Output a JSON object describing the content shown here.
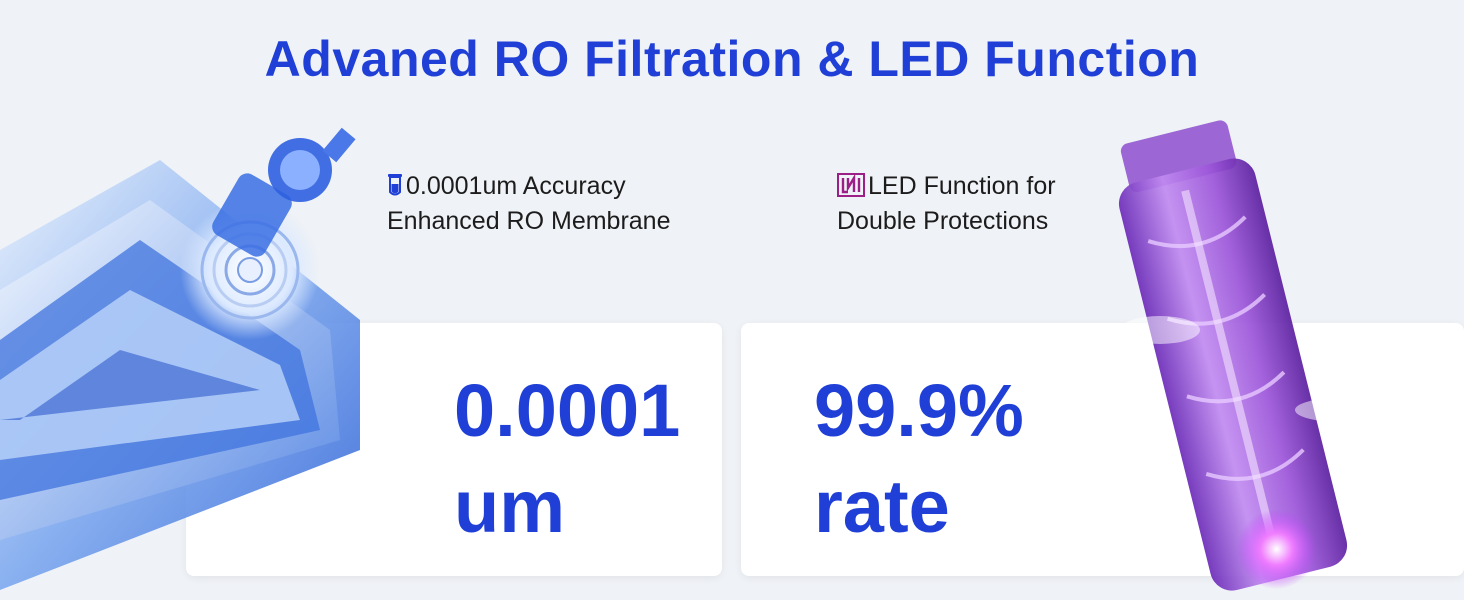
{
  "header": {
    "title": "Advaned RO Filtration & LED Function"
  },
  "features": [
    {
      "icon": "test-tube-icon",
      "line1": "0.0001um Accuracy",
      "line2": "Enhanced RO Membrane"
    },
    {
      "icon": "led-chip-icon",
      "line1": "LED Function for",
      "line2": "Double Protections"
    }
  ],
  "stats": [
    {
      "value": "0.0001",
      "unit": "um"
    },
    {
      "value": "99.9%",
      "unit": "rate"
    }
  ],
  "colors": {
    "accent": "#1f3fd6",
    "background": "#eff2f6",
    "led_purple": "#9b3fd8"
  }
}
